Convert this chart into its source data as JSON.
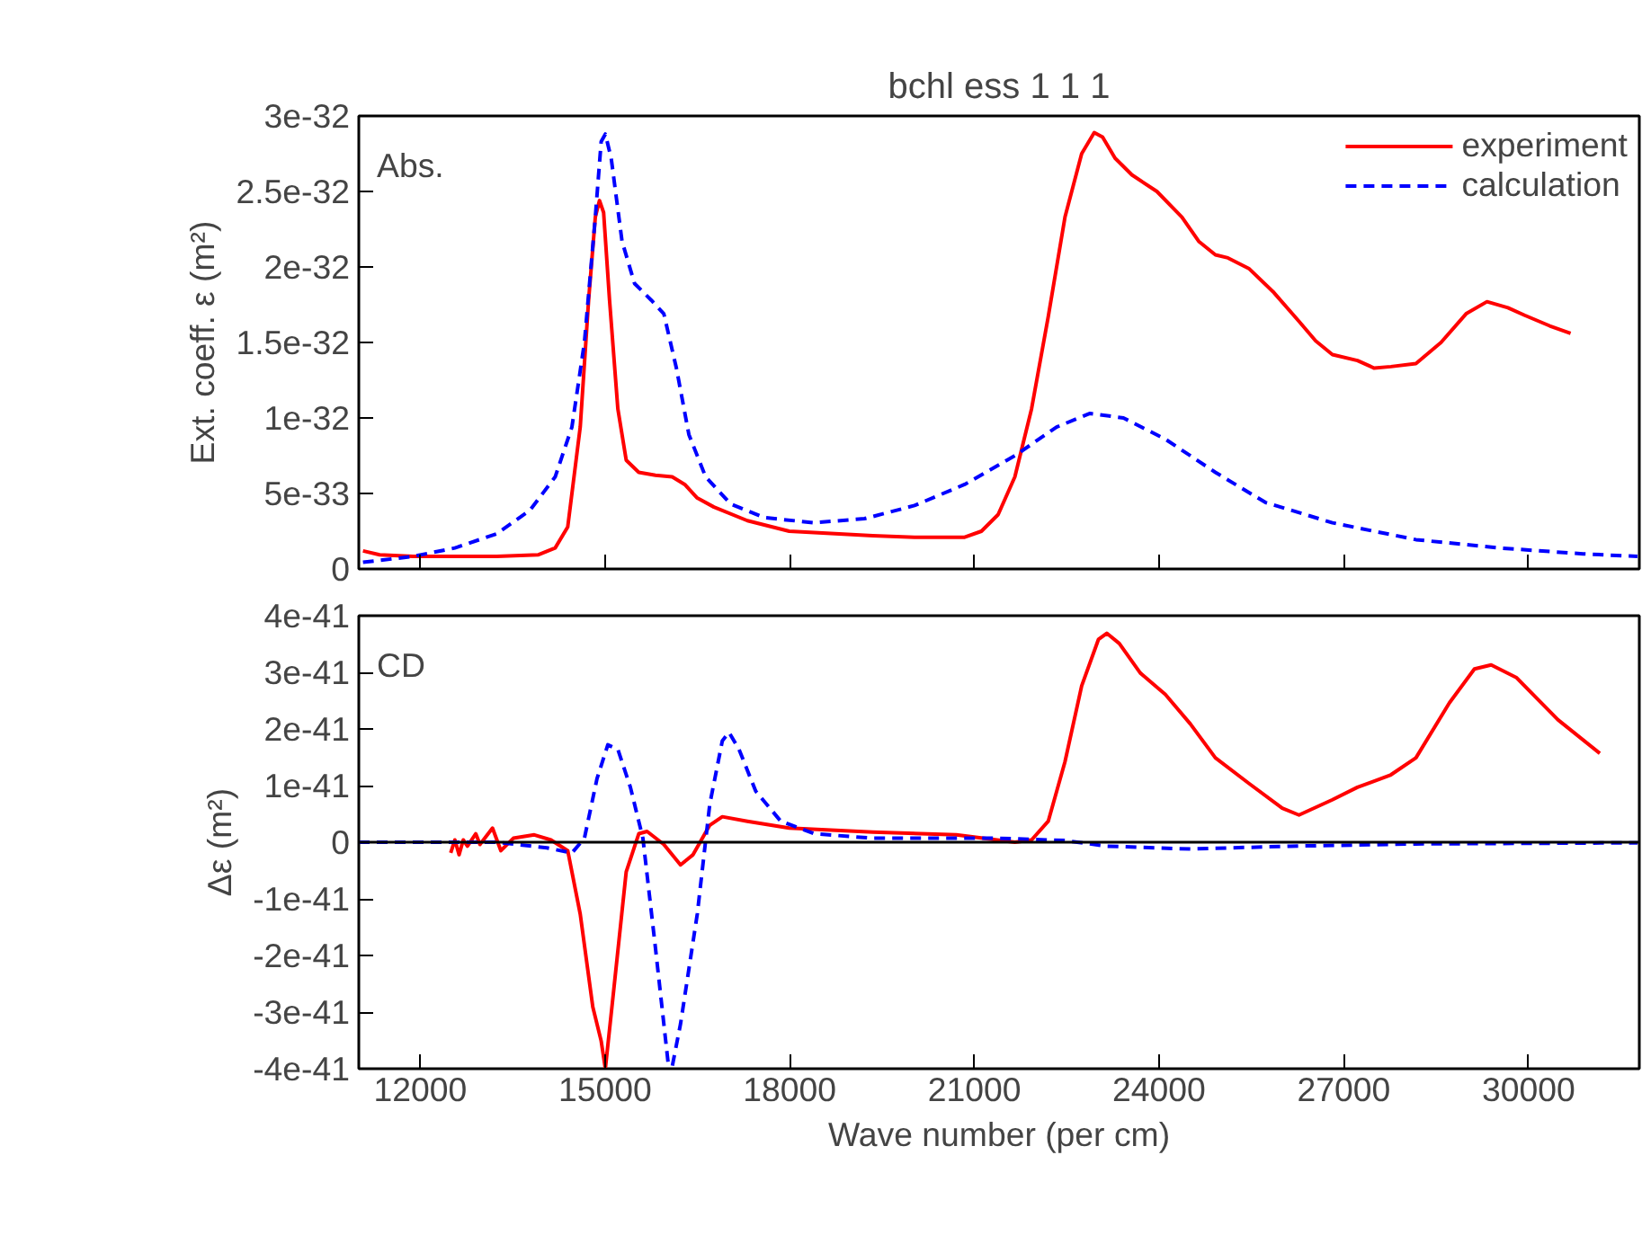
{
  "chart_data": [
    {
      "type": "line",
      "title": "bchl ess 1 1 1",
      "ylabel": "Ext. coeff. ε (m²)",
      "annotations": [
        "Abs."
      ],
      "xlim": [
        11000,
        31800
      ],
      "xticks": [
        12000,
        15000,
        18000,
        21000,
        24000,
        27000,
        30000
      ],
      "ylim": [
        0,
        3e-32
      ],
      "yticks": [
        {
          "value": 0,
          "label": "0"
        },
        {
          "value": 5e-33,
          "label": "5e-33"
        },
        {
          "value": 1e-32,
          "label": "1e-32"
        },
        {
          "value": 1.5e-32,
          "label": "1.5e-32"
        },
        {
          "value": 2e-32,
          "label": "2e-32"
        },
        {
          "value": 2.5e-32,
          "label": "2.5e-32"
        },
        {
          "value": 3e-32,
          "label": "3e-32"
        }
      ],
      "tick_labels": "y",
      "legend": "top right",
      "grid": false,
      "series": [
        {
          "name": "experiment",
          "color": "#ff0000",
          "line_style": "solid",
          "x": [
            11068,
            11339,
            11882,
            13240,
            13919,
            14190,
            14394,
            14597,
            14733,
            14842,
            14910,
            14977,
            15073,
            15208,
            15344,
            15548,
            15819,
            16091,
            16294,
            16498,
            16769,
            17312,
            17991,
            19349,
            20027,
            20842,
            21114,
            21385,
            21657,
            21928,
            22199,
            22471,
            22742,
            22946,
            23082,
            23285,
            23557,
            23964,
            24371,
            24643,
            24914,
            25118,
            25457,
            25865,
            26272,
            26543,
            26815,
            27222,
            27494,
            27765,
            28172,
            28579,
            28987,
            29326,
            29666,
            29937,
            30344,
            30684
          ],
          "values": [
            1.2e-33,
            9.4e-34,
            8.3e-34,
            8.3e-34,
            9.4e-34,
            1.39e-33,
            2.78e-33,
            9.4e-33,
            1.78e-32,
            2.33e-32,
            2.44e-32,
            2.36e-32,
            1.78e-32,
            1.06e-32,
            7.2e-33,
            6.4e-33,
            6.2e-33,
            6.1e-33,
            5.6e-33,
            4.7e-33,
            4.1e-33,
            3.2e-33,
            2.5e-33,
            2.2e-33,
            2.1e-33,
            2.1e-33,
            2.5e-33,
            3.6e-33,
            6.1e-33,
            1.06e-32,
            1.67e-32,
            2.33e-32,
            2.75e-32,
            2.89e-32,
            2.86e-32,
            2.72e-32,
            2.61e-32,
            2.5e-32,
            2.33e-32,
            2.17e-32,
            2.08e-32,
            2.06e-32,
            1.99e-32,
            1.83e-32,
            1.64e-32,
            1.51e-32,
            1.42e-32,
            1.38e-32,
            1.33e-32,
            1.34e-32,
            1.36e-32,
            1.5e-32,
            1.69e-32,
            1.77e-32,
            1.73e-32,
            1.68e-32,
            1.61e-32,
            1.56e-32
          ]
        },
        {
          "name": "calculation",
          "color": "#0000ff",
          "line_style": "dashed",
          "x": [
            11068,
            11882,
            12561,
            13240,
            13783,
            14190,
            14462,
            14665,
            14842,
            14937,
            15005,
            15100,
            15276,
            15480,
            15751,
            15955,
            16159,
            16362,
            16634,
            17041,
            17584,
            18398,
            19213,
            20027,
            20842,
            21657,
            22335,
            22878,
            23421,
            24100,
            24914,
            25729,
            26815,
            28172,
            29530,
            30887,
            31770
          ],
          "values": [
            4.4e-34,
            8.3e-34,
            1.39e-33,
            2.33e-33,
            3.9e-33,
            6.1e-33,
            9.4e-33,
            1.5e-32,
            2.33e-32,
            2.83e-32,
            2.88e-32,
            2.72e-32,
            2.17e-32,
            1.89e-32,
            1.78e-32,
            1.69e-32,
            1.33e-32,
            8.9e-33,
            6.1e-33,
            4.3e-33,
            3.4e-33,
            3.06e-33,
            3.33e-33,
            4.2e-33,
            5.6e-33,
            7.5e-33,
            9.4e-33,
            1.03e-32,
            1e-32,
            8.6e-33,
            6.4e-33,
            4.4e-33,
            3.06e-33,
            1.94e-33,
            1.39e-33,
            1e-33,
            8.3e-34
          ]
        }
      ]
    },
    {
      "type": "line",
      "xlabel": "Wave number (per cm)",
      "ylabel": "Δε (m²)",
      "annotations": [
        "CD"
      ],
      "xlim": [
        11000,
        31800
      ],
      "xticks": [
        12000,
        15000,
        18000,
        21000,
        24000,
        27000,
        30000
      ],
      "ylim": [
        -4e-41,
        4e-41
      ],
      "yticks": [
        {
          "value": -4e-41,
          "label": "-4e-41"
        },
        {
          "value": -3e-41,
          "label": "-3e-41"
        },
        {
          "value": -2e-41,
          "label": "-2e-41"
        },
        {
          "value": -1e-41,
          "label": "-1e-41"
        },
        {
          "value": 0,
          "label": "0"
        },
        {
          "value": 1e-41,
          "label": "1e-41"
        },
        {
          "value": 2e-41,
          "label": "2e-41"
        },
        {
          "value": 3e-41,
          "label": "3e-41"
        },
        {
          "value": 4e-41,
          "label": "4e-41"
        }
      ],
      "ref_lines": [
        {
          "axis": "y",
          "value": 0,
          "color": "#000000"
        }
      ],
      "grid": false,
      "series": [
        {
          "color": "#ff0000",
          "line_style": "solid",
          "x": [
            12493,
            12561,
            12629,
            12697,
            12765,
            12900,
            12968,
            13172,
            13308,
            13511,
            13851,
            14122,
            14394,
            14597,
            14801,
            14937,
            15005,
            15141,
            15344,
            15548,
            15683,
            15955,
            16226,
            16430,
            16701,
            16905,
            17312,
            17991,
            19349,
            20706,
            21657,
            21928,
            22199,
            22471,
            22742,
            23014,
            23150,
            23353,
            23693,
            24100,
            24507,
            24914,
            25457,
            26000,
            26272,
            26815,
            27222,
            27765,
            28172,
            28715,
            29122,
            29394,
            29801,
            30480,
            31159
          ],
          "values": [
            -1.9e-42,
            4e-43,
            -2.2e-42,
            4e-43,
            -7e-43,
            1.5e-42,
            -4e-43,
            2.5e-42,
            -1.5e-42,
            7e-43,
            1.3e-42,
            4e-43,
            -1.5e-42,
            -1.27e-41,
            -2.91e-41,
            -3.51e-41,
            -4e-41,
            -2.61e-41,
            -5.2e-42,
            1.5e-42,
            1.9e-42,
            -4e-43,
            -4e-42,
            -2.2e-42,
            3e-42,
            4.5e-42,
            3.7e-42,
            2.5e-42,
            1.8e-42,
            1.3e-42,
            0,
            4e-43,
            3.7e-42,
            1.42e-41,
            2.76e-41,
            3.58e-41,
            3.69e-41,
            3.51e-41,
            2.99e-41,
            2.61e-41,
            2.09e-41,
            1.49e-41,
            1.04e-41,
            6e-42,
            4.8e-42,
            7.5e-42,
            9.7e-42,
            1.19e-41,
            1.49e-41,
            2.46e-41,
            3.06e-41,
            3.13e-41,
            2.91e-41,
            2.16e-41,
            1.57e-41
          ]
        },
        {
          "color": "#0000ff",
          "line_style": "dashed",
          "x": [
            11000,
            13240,
            14054,
            14462,
            14665,
            14869,
            15045,
            15208,
            15412,
            15615,
            15819,
            16023,
            16091,
            16226,
            16498,
            16701,
            16905,
            17014,
            17176,
            17448,
            17855,
            18398,
            19349,
            21385,
            22471,
            23150,
            24507,
            26136,
            28172,
            31770
          ],
          "values": [
            0,
            0,
            -1e-42,
            -1.9e-42,
            7e-43,
            1.12e-41,
            1.72e-41,
            1.64e-41,
            9.7e-42,
            7e-43,
            -1.87e-41,
            -3.88e-41,
            -3.96e-41,
            -3.21e-41,
            -1.27e-41,
            6.7e-42,
            1.79e-41,
            1.94e-41,
            1.64e-41,
            9e-42,
            3.7e-42,
            1.5e-42,
            7e-43,
            7e-43,
            3e-43,
            -7e-43,
            -1.2e-42,
            -7e-43,
            -3e-43,
            -1e-43
          ]
        }
      ]
    }
  ]
}
